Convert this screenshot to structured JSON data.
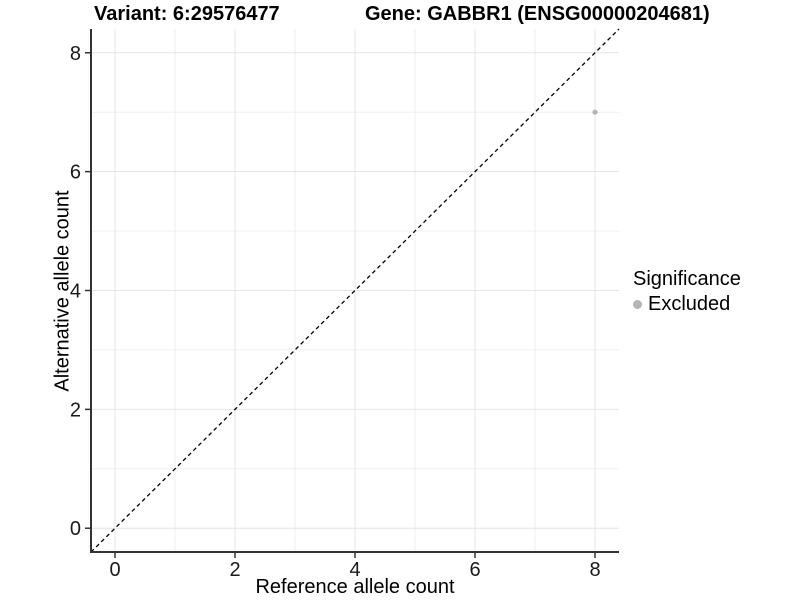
{
  "figure": {
    "background": "#ffffff"
  },
  "chart_data": {
    "type": "scatter",
    "titles": {
      "left": "Variant: 6:29576477",
      "right": "Gene: GABBR1 (ENSG00000204681)"
    },
    "xlabel": "Reference allele count",
    "ylabel": "Alternative allele count",
    "xlim": [
      -0.4,
      8.4
    ],
    "ylim": [
      -0.4,
      8.4
    ],
    "xticks": [
      0,
      2,
      4,
      6,
      8
    ],
    "yticks": [
      0,
      2,
      4,
      6,
      8
    ],
    "xminor": [
      1,
      3,
      5,
      7
    ],
    "yminor": [
      1,
      3,
      5,
      7
    ],
    "grid": "major and minor gridlines, white panel background",
    "series": [
      {
        "name": "Excluded",
        "color": "#b5b5b5",
        "point_radius": 2.6,
        "points": [
          {
            "x": 8,
            "y": 7
          }
        ]
      }
    ],
    "reference_line": {
      "kind": "identity y = x",
      "style": "dashed",
      "color": "#000000"
    },
    "legend": {
      "title": "Significance",
      "position": "right",
      "entries": [
        {
          "label": "Excluded",
          "color": "#b5b5b5"
        }
      ]
    },
    "axis_color": "#333333",
    "grid_major_color": "#e4e4e4",
    "grid_minor_color": "#efefef"
  }
}
